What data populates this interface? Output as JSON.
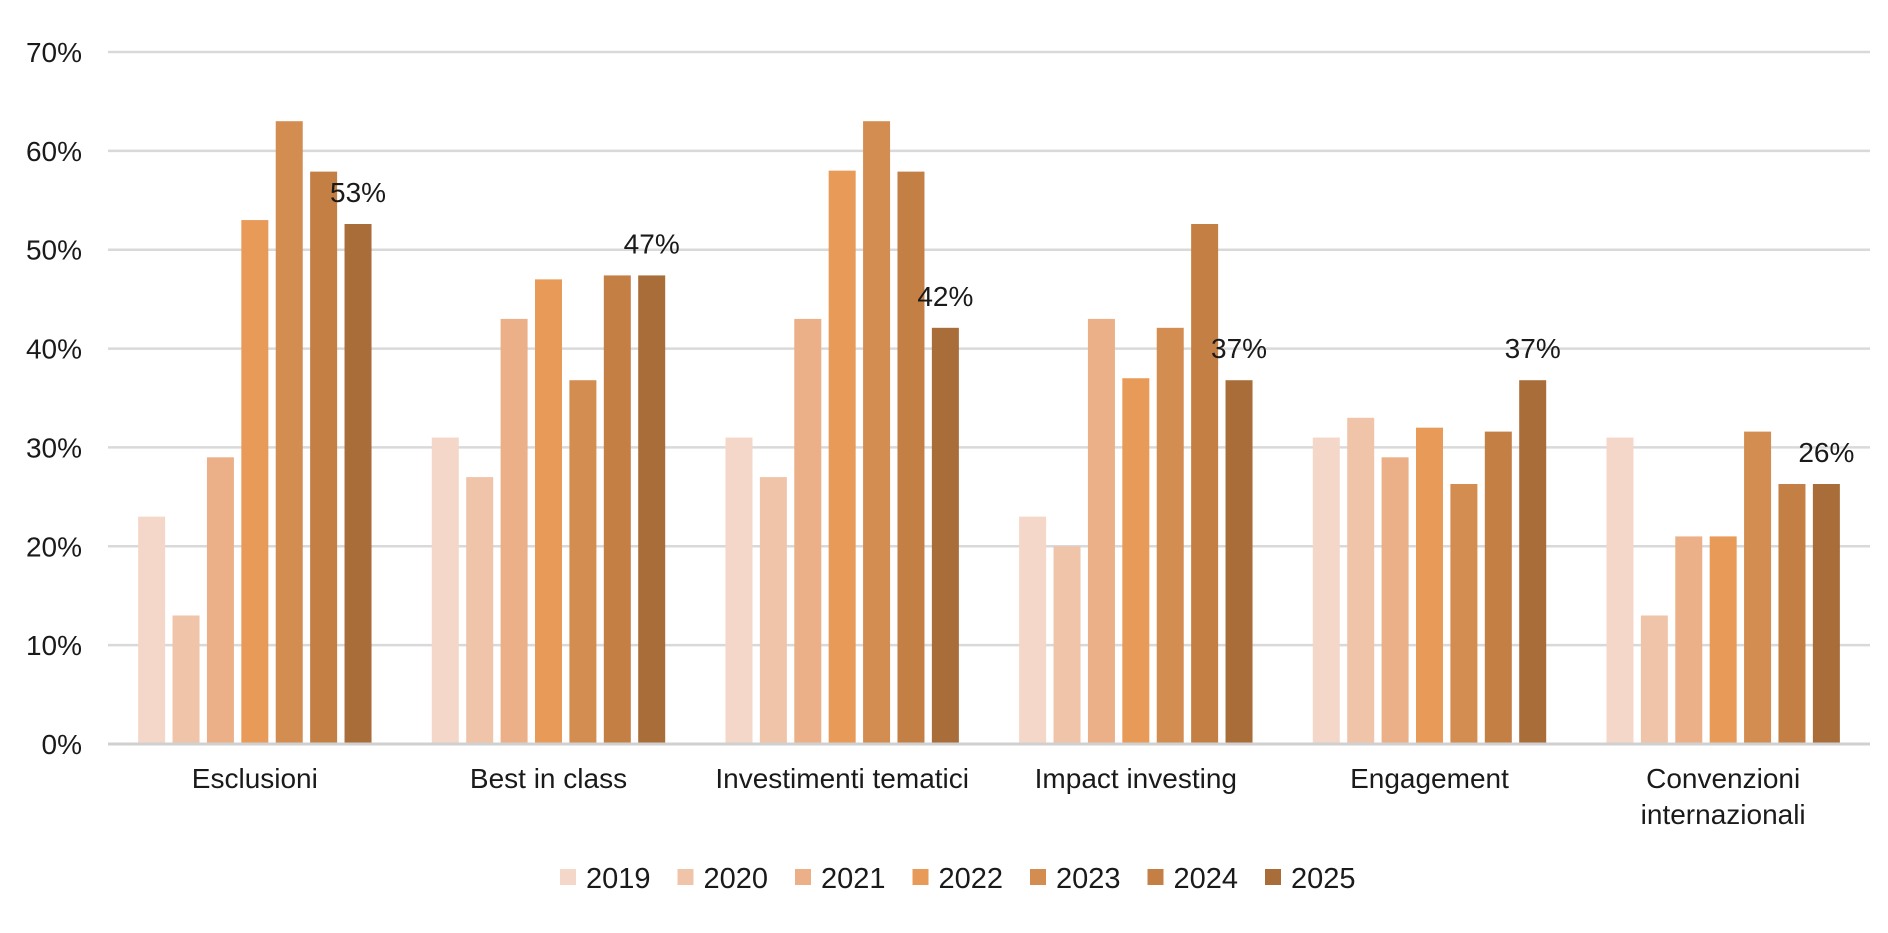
{
  "chart_data": {
    "type": "bar",
    "title": "",
    "xlabel": "",
    "ylabel": "",
    "ylim": [
      0,
      70
    ],
    "y_ticks": [
      "0%",
      "10%",
      "20%",
      "30%",
      "40%",
      "50%",
      "60%",
      "70%"
    ],
    "y_tick_values": [
      0,
      10,
      20,
      30,
      40,
      50,
      60,
      70
    ],
    "grid": true,
    "legend_position": "bottom",
    "categories": [
      [
        "Esclusioni"
      ],
      [
        "Best in class"
      ],
      [
        "Investimenti tematici"
      ],
      [
        "Impact investing"
      ],
      [
        "Engagement"
      ],
      [
        "Convenzioni",
        "internazionali"
      ]
    ],
    "series": [
      {
        "name": "2019",
        "color": "#f4d7c8",
        "values": [
          23,
          31,
          31,
          23,
          31,
          31
        ]
      },
      {
        "name": "2020",
        "color": "#f0c4a8",
        "values": [
          13,
          27,
          27,
          20,
          33,
          13
        ]
      },
      {
        "name": "2021",
        "color": "#ebb088",
        "values": [
          29,
          43,
          43,
          43,
          29,
          21
        ]
      },
      {
        "name": "2022",
        "color": "#e89b58",
        "values": [
          53,
          47,
          58,
          37,
          32,
          21
        ]
      },
      {
        "name": "2023",
        "color": "#d48d50",
        "values": [
          63,
          36.8,
          63,
          42.1,
          26.3,
          31.6
        ]
      },
      {
        "name": "2024",
        "color": "#c47f45",
        "values": [
          57.9,
          47.4,
          57.9,
          52.6,
          31.6,
          26.3
        ]
      },
      {
        "name": "2025",
        "color": "#a86d38",
        "values": [
          52.6,
          47.4,
          42.1,
          36.8,
          36.8,
          26.3
        ]
      }
    ],
    "data_labels": [
      {
        "category_index": 0,
        "text": "53%"
      },
      {
        "category_index": 1,
        "text": "47%"
      },
      {
        "category_index": 2,
        "text": "42%"
      },
      {
        "category_index": 3,
        "text": "37%"
      },
      {
        "category_index": 4,
        "text": "37%"
      },
      {
        "category_index": 5,
        "text": "26%"
      }
    ]
  }
}
